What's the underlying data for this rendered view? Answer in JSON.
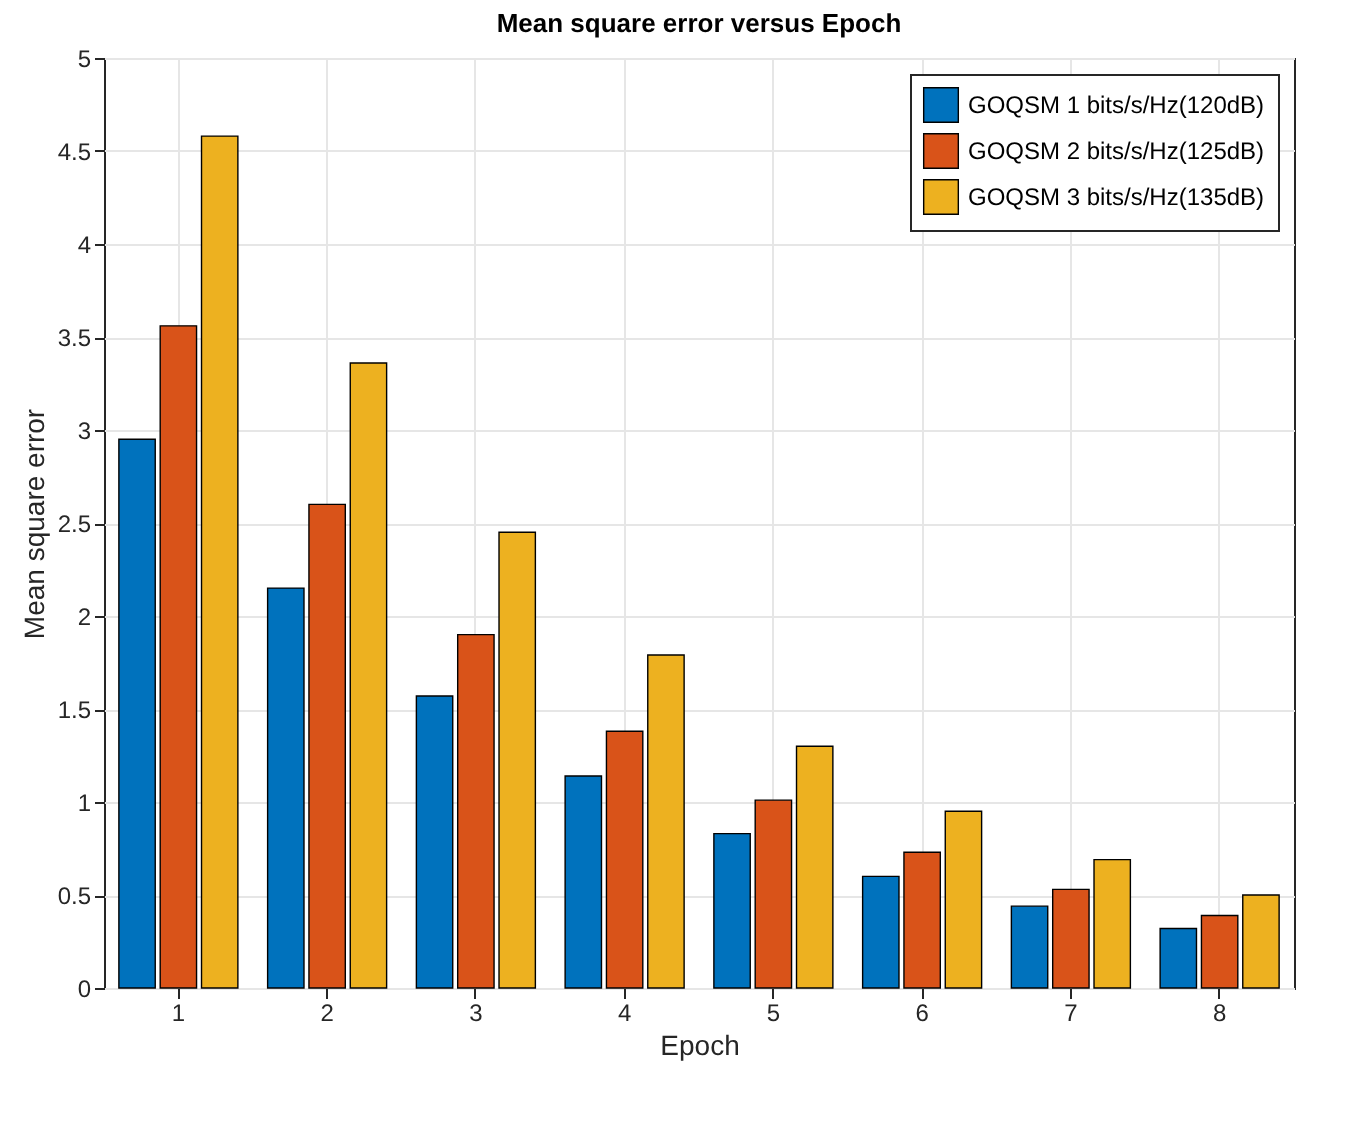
{
  "chart_data": {
    "type": "bar",
    "title": "Mean square error versus Epoch",
    "xlabel": "Epoch",
    "ylabel": "Mean square error",
    "categories": [
      "1",
      "2",
      "3",
      "4",
      "5",
      "6",
      "7",
      "8"
    ],
    "series": [
      {
        "name": "GOQSM 1 bits/s/Hz(120dB)",
        "color": "#0072bd",
        "values": [
          2.95,
          2.15,
          1.57,
          1.14,
          0.83,
          0.6,
          0.44,
          0.32
        ]
      },
      {
        "name": "GOQSM 2 bits/s/Hz(125dB)",
        "color": "#d95319",
        "values": [
          3.56,
          2.6,
          1.9,
          1.38,
          1.01,
          0.73,
          0.53,
          0.39
        ]
      },
      {
        "name": "GOQSM 3 bits/s/Hz(135dB)",
        "color": "#edb120",
        "values": [
          4.58,
          3.36,
          2.45,
          1.79,
          1.3,
          0.95,
          0.69,
          0.5
        ]
      }
    ],
    "ylim": [
      0,
      5
    ],
    "yticks": [
      0,
      0.5,
      1,
      1.5,
      2,
      2.5,
      3,
      3.5,
      4,
      4.5,
      5
    ],
    "grid": true,
    "legend": "top right"
  }
}
